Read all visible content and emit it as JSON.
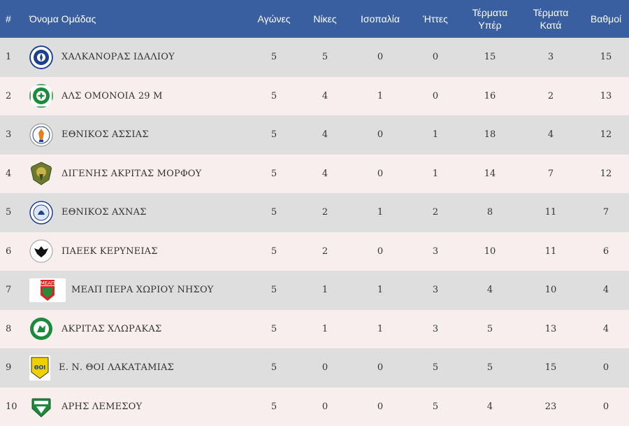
{
  "header": {
    "pos": "#",
    "team": "Όνομα Ομάδας",
    "played": "Αγώνες",
    "wins": "Νίκες",
    "draws": "Ισοπαλία",
    "losses": "Ήττες",
    "gf_line1": "Τέρματα",
    "gf_line2": "Υπέρ",
    "ga_line1": "Τέρματα",
    "ga_line2": "Κατά",
    "points": "Βαθμοί"
  },
  "colors": {
    "header_bg": "#3a5fa0",
    "row_odd": "#dedede",
    "row_even": "#f8eeee"
  },
  "rows": [
    {
      "pos": "1",
      "team": "ΧΑΛΚΑΝΟΡΑΣ ΙΔΑΛΙΟΥ",
      "played": "5",
      "wins": "5",
      "draws": "0",
      "losses": "0",
      "gf": "15",
      "ga": "3",
      "points": "15",
      "logo": "chalkanoras-logo"
    },
    {
      "pos": "2",
      "team": "ΑΛΣ ΟΜΟΝΟΙΑ 29 Μ",
      "played": "5",
      "wins": "4",
      "draws": "1",
      "losses": "0",
      "gf": "16",
      "ga": "2",
      "points": "13",
      "logo": "omonoia-logo"
    },
    {
      "pos": "3",
      "team": "ΕΘΝΙΚΟΣ ΑΣΣΙΑΣ",
      "played": "5",
      "wins": "4",
      "draws": "0",
      "losses": "1",
      "gf": "18",
      "ga": "4",
      "points": "12",
      "logo": "ethnikos-assias-logo"
    },
    {
      "pos": "4",
      "team": "ΔΙΓΕΝΗΣ ΑΚΡΙΤΑΣ ΜΟΡΦΟΥ",
      "played": "5",
      "wins": "4",
      "draws": "0",
      "losses": "1",
      "gf": "14",
      "ga": "7",
      "points": "12",
      "logo": "digenis-logo"
    },
    {
      "pos": "5",
      "team": "ΕΘΝΙΚΟΣ ΑΧΝΑΣ",
      "played": "5",
      "wins": "2",
      "draws": "1",
      "losses": "2",
      "gf": "8",
      "ga": "11",
      "points": "7",
      "logo": "ethnikos-achnas-logo"
    },
    {
      "pos": "6",
      "team": "ΠΑΕΕΚ ΚΕΡΥΝΕΙΑΣ",
      "played": "5",
      "wins": "2",
      "draws": "0",
      "losses": "3",
      "gf": "10",
      "ga": "11",
      "points": "6",
      "logo": "paeek-logo"
    },
    {
      "pos": "7",
      "team": "ΜΕΑΠ ΠΕΡΑ ΧΩΡΙΟΥ ΝΗΣΟΥ",
      "played": "5",
      "wins": "1",
      "draws": "1",
      "losses": "3",
      "gf": "4",
      "ga": "10",
      "points": "4",
      "logo": "meap-logo"
    },
    {
      "pos": "8",
      "team": "ΑΚΡΙΤΑΣ ΧΛΩΡΑΚΑΣ",
      "played": "5",
      "wins": "1",
      "draws": "1",
      "losses": "3",
      "gf": "5",
      "ga": "13",
      "points": "4",
      "logo": "akritas-logo"
    },
    {
      "pos": "9",
      "team": "Ε. Ν. ΘΟΙ ΛΑΚΑΤΑΜΙΑΣ",
      "played": "5",
      "wins": "0",
      "draws": "0",
      "losses": "5",
      "gf": "5",
      "ga": "15",
      "points": "0",
      "logo": "thoi-logo"
    },
    {
      "pos": "10",
      "team": "ΑΡΗΣ ΛΕΜΕΣΟΥ",
      "played": "5",
      "wins": "0",
      "draws": "0",
      "losses": "5",
      "gf": "4",
      "ga": "23",
      "points": "0",
      "logo": "aris-logo"
    }
  ]
}
